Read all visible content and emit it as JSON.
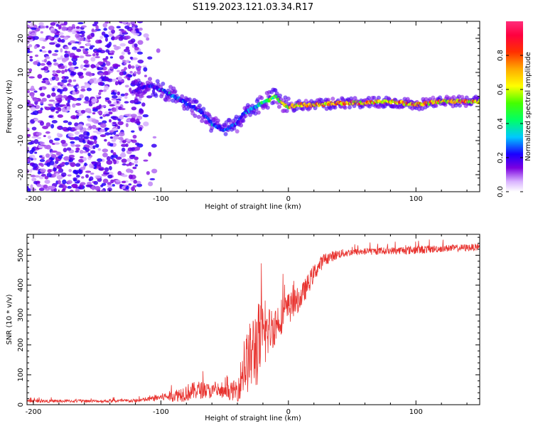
{
  "title": "S119.2023.121.03.34.R17",
  "chart_data": [
    {
      "type": "heatmap",
      "xlabel": "Height of straight line (km)",
      "ylabel": "Frequency (Hz)",
      "xlim": [
        -205,
        150
      ],
      "ylim": [
        -25,
        25
      ],
      "xticks": [
        -200,
        -100,
        0,
        100
      ],
      "yticks": [
        -20,
        -10,
        0,
        10,
        20
      ],
      "colorbar": {
        "label": "Normalized spectral amplitude",
        "range": [
          0,
          1
        ],
        "ticks": [
          0.0,
          0.2,
          0.4,
          0.6,
          0.8
        ],
        "tick_labels": [
          "0.0",
          "0.2",
          "0.4",
          "0.6",
          "0.8"
        ]
      },
      "ridge": {
        "x": [
          -120,
          -110,
          -100,
          -90,
          -80,
          -70,
          -60,
          -50,
          -45,
          -40,
          -35,
          -30,
          -25,
          -20,
          -15,
          -10,
          -5,
          0,
          10,
          20,
          40,
          60,
          80,
          100,
          120,
          150
        ],
        "frequency": [
          5,
          6,
          5,
          3,
          1,
          -1,
          -5,
          -7,
          -6,
          -5,
          -2,
          -1,
          0,
          1,
          2,
          3,
          1,
          0,
          0.5,
          0.5,
          1,
          1,
          1.5,
          0.5,
          1.5,
          1.5
        ],
        "amplitude": [
          0.2,
          0.25,
          0.25,
          0.3,
          0.3,
          0.25,
          0.3,
          0.3,
          0.3,
          0.3,
          0.3,
          0.35,
          0.4,
          0.5,
          0.55,
          0.6,
          0.7,
          0.75,
          0.8,
          0.85,
          0.85,
          0.85,
          0.85,
          0.85,
          0.85,
          0.85
        ]
      },
      "noise_region": {
        "x_range": [
          -205,
          -115
        ],
        "frequency_range": [
          -25,
          25
        ],
        "amplitude_range": [
          0.05,
          0.22
        ]
      }
    },
    {
      "type": "line",
      "xlabel": "Height of straight line (km)",
      "ylabel": "SNR (10 * v/v)",
      "xlim": [
        -205,
        150
      ],
      "ylim": [
        0,
        570
      ],
      "xticks": [
        -200,
        -100,
        0,
        100
      ],
      "yticks": [
        0,
        100,
        200,
        300,
        400,
        500
      ],
      "color": "#e8322e",
      "series": [
        {
          "x": [
            -205,
            -180,
            -150,
            -120,
            -110,
            -100,
            -90,
            -80,
            -70,
            -60,
            -50,
            -40,
            -35,
            -30,
            -25,
            -20,
            -15,
            -10,
            -5,
            0,
            5,
            10,
            15,
            20,
            25,
            30,
            40,
            50,
            60,
            80,
            100,
            120,
            150
          ],
          "y": [
            12,
            12,
            12,
            13,
            18,
            25,
            30,
            40,
            50,
            45,
            40,
            50,
            120,
            160,
            200,
            220,
            250,
            270,
            300,
            320,
            340,
            360,
            400,
            440,
            470,
            490,
            505,
            510,
            512,
            515,
            518,
            522,
            527
          ],
          "noise": [
            5,
            5,
            5,
            6,
            8,
            12,
            20,
            30,
            30,
            25,
            20,
            40,
            90,
            120,
            150,
            120,
            80,
            70,
            60,
            55,
            45,
            40,
            35,
            30,
            25,
            20,
            15,
            12,
            12,
            12,
            15,
            12,
            12
          ]
        }
      ]
    }
  ]
}
